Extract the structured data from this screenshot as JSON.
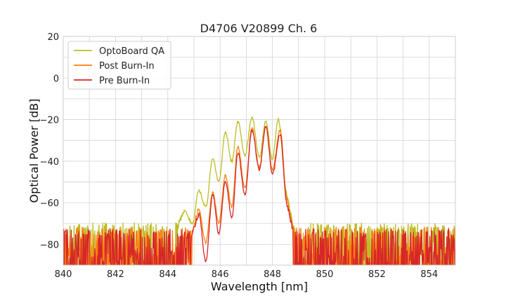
{
  "chart_data": {
    "type": "line",
    "title": "D4706 V20899 Ch. 6",
    "xlabel": "Wavelength [nm]",
    "ylabel": "Optical Power [dB]",
    "xlim": [
      840,
      855
    ],
    "ylim": [
      -90,
      20
    ],
    "xticks": [
      "840",
      "842",
      "844",
      "846",
      "848",
      "850",
      "852",
      "854"
    ],
    "yticks": [
      "−80",
      "−60",
      "−40",
      "−20",
      "0",
      "20"
    ],
    "grid": true,
    "legend_position": "top-left",
    "series": [
      {
        "name": "OptoBoard QA",
        "color": "#bcbd22",
        "noise_level_db": -72,
        "edge_nm": [
          840.0,
          848.7
        ],
        "peaks": [
          {
            "x": 844.62,
            "y": -64
          },
          {
            "x": 845.18,
            "y": -54
          },
          {
            "x": 845.72,
            "y": -39
          },
          {
            "x": 846.2,
            "y": -26
          },
          {
            "x": 846.68,
            "y": -21
          },
          {
            "x": 847.22,
            "y": -19
          },
          {
            "x": 847.75,
            "y": -21
          },
          {
            "x": 848.22,
            "y": -20
          }
        ],
        "dips": [
          {
            "x": 844.95,
            "y": -70
          },
          {
            "x": 845.45,
            "y": -62
          },
          {
            "x": 845.95,
            "y": -50
          },
          {
            "x": 846.45,
            "y": -40
          },
          {
            "x": 846.95,
            "y": -37
          },
          {
            "x": 847.5,
            "y": -38
          },
          {
            "x": 848.0,
            "y": -39
          },
          {
            "x": 848.55,
            "y": -55
          }
        ]
      },
      {
        "name": "Post Burn-In",
        "color": "#ff7f0e",
        "noise_level_db": -74,
        "edge_nm": [
          840.0,
          848.8
        ],
        "peaks": [
          {
            "x": 845.18,
            "y": -63
          },
          {
            "x": 845.72,
            "y": -55
          },
          {
            "x": 846.2,
            "y": -47
          },
          {
            "x": 846.68,
            "y": -33
          },
          {
            "x": 847.22,
            "y": -24
          },
          {
            "x": 847.75,
            "y": -23
          },
          {
            "x": 848.3,
            "y": -25
          }
        ],
        "dips": [
          {
            "x": 845.45,
            "y": -79
          },
          {
            "x": 845.95,
            "y": -70
          },
          {
            "x": 846.45,
            "y": -62
          },
          {
            "x": 846.95,
            "y": -53
          },
          {
            "x": 847.5,
            "y": -43
          },
          {
            "x": 848.0,
            "y": -44
          },
          {
            "x": 848.55,
            "y": -57
          }
        ]
      },
      {
        "name": "Pre Burn-In",
        "color": "#d62728",
        "noise_level_db": -75,
        "edge_nm": [
          840.0,
          848.85
        ],
        "peaks": [
          {
            "x": 845.18,
            "y": -65
          },
          {
            "x": 845.72,
            "y": -56
          },
          {
            "x": 846.2,
            "y": -50
          },
          {
            "x": 846.68,
            "y": -36
          },
          {
            "x": 847.22,
            "y": -25
          },
          {
            "x": 847.75,
            "y": -23
          },
          {
            "x": 848.3,
            "y": -27
          }
        ],
        "dips": [
          {
            "x": 845.45,
            "y": -88
          },
          {
            "x": 845.95,
            "y": -75
          },
          {
            "x": 846.45,
            "y": -67
          },
          {
            "x": 846.95,
            "y": -56
          },
          {
            "x": 847.5,
            "y": -44
          },
          {
            "x": 848.0,
            "y": -46
          },
          {
            "x": 848.55,
            "y": -60
          }
        ]
      }
    ]
  }
}
